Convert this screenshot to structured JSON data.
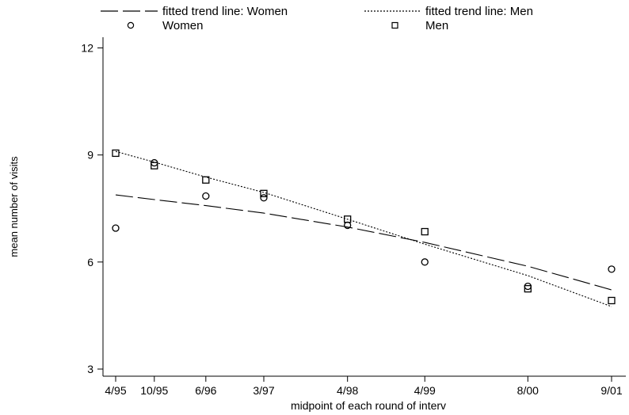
{
  "chart_data": {
    "type": "scatter",
    "xlabel": "midpoint of each round of interv",
    "ylabel": "mean number of visits",
    "x_ticks": [
      "4/95",
      "10/95",
      "6/96",
      "3/97",
      "4/98",
      "4/99",
      "8/00",
      "9/01"
    ],
    "x_range": [
      "1995-04",
      "2001-09"
    ],
    "y_ticks": [
      3,
      6,
      9,
      12
    ],
    "ylim": [
      2.8,
      12.3
    ],
    "grid": false,
    "legend_position": "top",
    "legend": [
      {
        "label": "fitted trend line: Women",
        "style": "long-dash line"
      },
      {
        "label": "fitted trend line: Men",
        "style": "dotted line"
      },
      {
        "label": "Women",
        "style": "circle"
      },
      {
        "label": "Men",
        "style": "square"
      }
    ],
    "series": [
      {
        "name": "Women",
        "marker": "circle",
        "x": [
          "1995-04",
          "1995-10",
          "1996-06",
          "1997-03",
          "1998-04",
          "1999-04",
          "2000-08",
          "2001-09"
        ],
        "y": [
          6.95,
          8.78,
          7.85,
          7.8,
          7.03,
          6.0,
          5.32,
          5.8
        ]
      },
      {
        "name": "Men",
        "marker": "square",
        "x": [
          "1995-04",
          "1995-10",
          "1996-06",
          "1997-03",
          "1998-04",
          "1999-04",
          "2000-08",
          "2001-09"
        ],
        "y": [
          9.05,
          8.7,
          8.3,
          7.92,
          7.2,
          6.85,
          5.25,
          4.92
        ]
      },
      {
        "name": "fitted trend line: Women",
        "line": "long-dash",
        "x": [
          "1995-04",
          "1995-10",
          "1996-06",
          "1997-03",
          "1998-04",
          "1999-04",
          "2000-08",
          "2001-09"
        ],
        "y": [
          7.88,
          7.75,
          7.58,
          7.37,
          6.98,
          6.55,
          5.88,
          5.22
        ]
      },
      {
        "name": "fitted trend line: Men",
        "line": "dotted",
        "x": [
          "1995-04",
          "1995-10",
          "1996-06",
          "1997-03",
          "1998-04",
          "1999-04",
          "2000-08",
          "2001-09"
        ],
        "y": [
          9.1,
          8.8,
          8.38,
          7.95,
          7.2,
          6.5,
          5.62,
          4.75
        ]
      }
    ]
  }
}
